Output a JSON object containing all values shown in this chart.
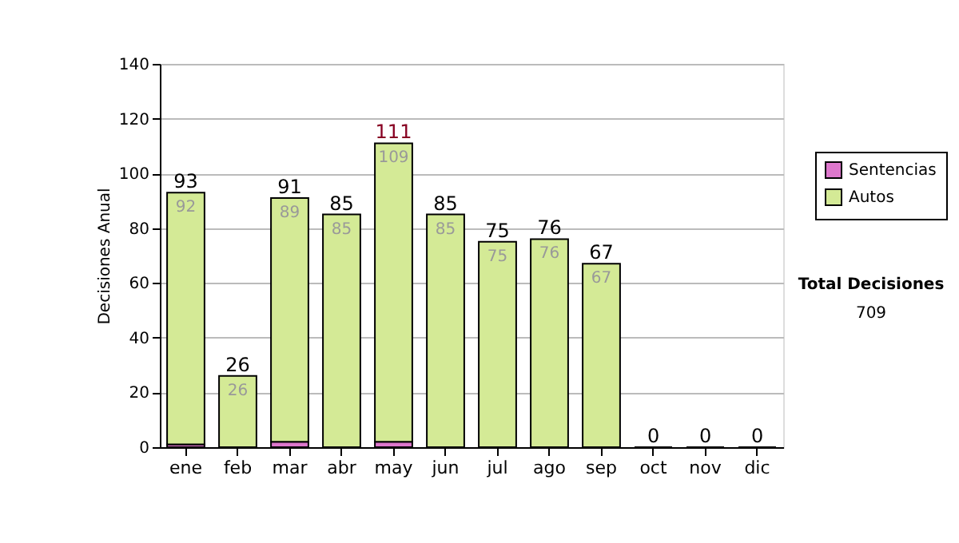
{
  "chart_data": {
    "type": "bar",
    "stacked": true,
    "categories": [
      "ene",
      "feb",
      "mar",
      "abr",
      "may",
      "jun",
      "jul",
      "ago",
      "sep",
      "oct",
      "nov",
      "dic"
    ],
    "ylabel": "Decisiones Anual",
    "ylim": [
      0,
      140
    ],
    "yticks": [
      0,
      20,
      40,
      60,
      80,
      100,
      120,
      140
    ],
    "grid": "y",
    "legend": "right",
    "series": [
      {
        "name": "Sentencias",
        "color": "#dd77cc",
        "values": [
          1,
          0,
          2,
          0,
          2,
          0,
          0,
          0,
          0,
          0,
          0,
          0
        ]
      },
      {
        "name": "Autos",
        "color": "#d4ea96",
        "values": [
          92,
          26,
          89,
          85,
          109,
          85,
          75,
          76,
          67,
          0,
          0,
          0
        ],
        "value_labels": [
          "92",
          "26",
          "89",
          "85",
          "109",
          "85",
          "75",
          "76",
          "67",
          null,
          null,
          null
        ]
      }
    ],
    "totals": [
      "93",
      "26",
      "91",
      "85",
      "111",
      "85",
      "75",
      "76",
      "67",
      "0",
      "0",
      "0"
    ],
    "annotations": [
      "Total Decisiones",
      "709"
    ]
  }
}
